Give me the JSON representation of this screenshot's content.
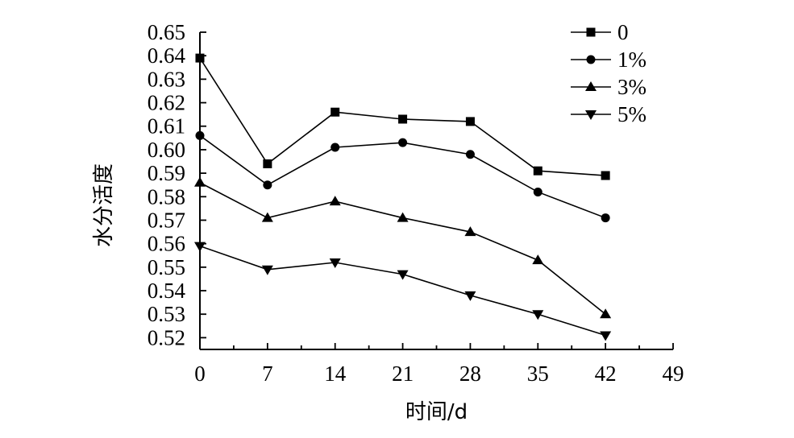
{
  "chart_data": {
    "type": "line",
    "xlabel": "时间/d",
    "ylabel": "水分活度",
    "xlim": [
      0,
      49
    ],
    "ylim": [
      0.515,
      0.65
    ],
    "x_ticks": [
      0,
      7,
      14,
      21,
      28,
      35,
      42,
      49
    ],
    "y_ticks": [
      0.52,
      0.53,
      0.54,
      0.55,
      0.56,
      0.57,
      0.58,
      0.59,
      0.6,
      0.61,
      0.62,
      0.63,
      0.64,
      0.65
    ],
    "grid": false,
    "legend_position": "top-right",
    "x": [
      0,
      7,
      14,
      21,
      28,
      35,
      42
    ],
    "series": [
      {
        "name": "0",
        "marker": "square",
        "values": [
          0.639,
          0.594,
          0.616,
          0.613,
          0.612,
          0.591,
          0.589
        ]
      },
      {
        "name": "1%",
        "marker": "circle",
        "values": [
          0.606,
          0.585,
          0.601,
          0.603,
          0.598,
          0.582,
          0.571
        ]
      },
      {
        "name": "3%",
        "marker": "triangle-up",
        "values": [
          0.586,
          0.571,
          0.578,
          0.571,
          0.565,
          0.553,
          0.53
        ]
      },
      {
        "name": "5%",
        "marker": "triangle-down",
        "values": [
          0.559,
          0.549,
          0.552,
          0.547,
          0.538,
          0.53,
          0.521
        ]
      }
    ]
  }
}
